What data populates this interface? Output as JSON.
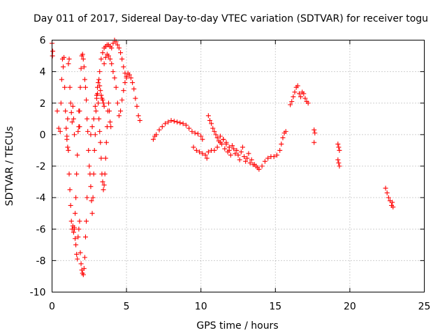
{
  "chart_data": {
    "type": "scatter",
    "title": "Day 011 of 2017, Sidereal Day-to-day VTEC variation (SDTVAR) for receiver togu",
    "xlabel": "GPS time / hours",
    "ylabel": "SDTVAR / TECUs",
    "xlim": [
      0,
      25
    ],
    "ylim": [
      -10,
      6
    ],
    "xticks": [
      0,
      5,
      10,
      15,
      20,
      25
    ],
    "yticks": [
      -10,
      -8,
      -6,
      -4,
      -2,
      0,
      2,
      4,
      6
    ],
    "xtick_labels": [
      "0",
      "5",
      "10",
      "15",
      "20",
      "25"
    ],
    "ytick_labels": [
      "-10",
      "-8",
      "-6",
      "-4",
      "-2",
      "0",
      "2",
      "4",
      "6"
    ],
    "grid": true,
    "marker": "+",
    "color": "#ff0000",
    "series": [
      {
        "name": "SDTVAR",
        "points": [
          [
            0.0,
            5.8
          ],
          [
            0.03,
            5.0
          ],
          [
            0.05,
            5.3
          ],
          [
            0.35,
            1.5
          ],
          [
            0.45,
            0.4
          ],
          [
            0.55,
            0.2
          ],
          [
            0.6,
            2.0
          ],
          [
            0.65,
            3.5
          ],
          [
            0.7,
            4.8
          ],
          [
            0.75,
            4.3
          ],
          [
            0.8,
            4.9
          ],
          [
            0.85,
            3.0
          ],
          [
            0.9,
            1.5
          ],
          [
            0.95,
            0.4
          ],
          [
            1.0,
            -0.3
          ],
          [
            1.05,
            1.0
          ],
          [
            1.1,
            4.5
          ],
          [
            1.15,
            4.8
          ],
          [
            1.2,
            3.0
          ],
          [
            1.25,
            2.0
          ],
          [
            1.3,
            1.4
          ],
          [
            1.35,
            0.8
          ],
          [
            1.4,
            1.8
          ],
          [
            1.45,
            1.0
          ],
          [
            1.5,
            0.0
          ],
          [
            1.0,
            -0.1
          ],
          [
            1.05,
            -0.8
          ],
          [
            1.1,
            -1.0
          ],
          [
            1.15,
            -2.5
          ],
          [
            1.2,
            -3.5
          ],
          [
            1.25,
            -4.5
          ],
          [
            1.3,
            -5.5
          ],
          [
            1.35,
            -6.0
          ],
          [
            1.4,
            -5.8
          ],
          [
            1.45,
            -6.2
          ],
          [
            1.5,
            -5.9
          ],
          [
            1.55,
            -5.0
          ],
          [
            1.6,
            -4.0
          ],
          [
            1.65,
            -2.5
          ],
          [
            1.7,
            -1.3
          ],
          [
            1.75,
            0.2
          ],
          [
            1.8,
            1.5
          ],
          [
            1.85,
            0.5
          ],
          [
            1.5,
            -6.0
          ],
          [
            1.55,
            -6.6
          ],
          [
            1.6,
            -7.0
          ],
          [
            1.65,
            -7.6
          ],
          [
            1.7,
            -7.9
          ],
          [
            1.75,
            -6.5
          ],
          [
            1.8,
            -6.0
          ],
          [
            1.85,
            -5.5
          ],
          [
            1.9,
            -7.5
          ],
          [
            1.95,
            -8.2
          ],
          [
            2.0,
            -8.6
          ],
          [
            2.05,
            -8.8
          ],
          [
            2.1,
            -8.9
          ],
          [
            2.15,
            -8.5
          ],
          [
            2.2,
            -7.8
          ],
          [
            2.25,
            -6.5
          ],
          [
            2.3,
            -5.5
          ],
          [
            2.35,
            -4.0
          ],
          [
            1.8,
            0.5
          ],
          [
            1.85,
            1.5
          ],
          [
            1.9,
            3.0
          ],
          [
            1.95,
            4.2
          ],
          [
            2.0,
            5.0
          ],
          [
            2.05,
            5.1
          ],
          [
            2.1,
            4.8
          ],
          [
            2.15,
            4.3
          ],
          [
            2.2,
            3.5
          ],
          [
            2.25,
            3.0
          ],
          [
            2.3,
            2.2
          ],
          [
            2.35,
            1.0
          ],
          [
            2.4,
            0.2
          ],
          [
            2.45,
            -1.0
          ],
          [
            2.5,
            -2.0
          ],
          [
            2.55,
            -2.5
          ],
          [
            2.6,
            -3.3
          ],
          [
            2.65,
            -4.2
          ],
          [
            2.7,
            -5.0
          ],
          [
            2.75,
            -4.0
          ],
          [
            2.8,
            -2.5
          ],
          [
            2.85,
            -1.0
          ],
          [
            2.9,
            0.0
          ],
          [
            2.95,
            1.5
          ],
          [
            3.0,
            2.3
          ],
          [
            3.05,
            2.6
          ],
          [
            3.1,
            2.0
          ],
          [
            3.15,
            1.0
          ],
          [
            3.2,
            0.2
          ],
          [
            3.25,
            -0.5
          ],
          [
            3.3,
            -1.5
          ],
          [
            3.35,
            -2.5
          ],
          [
            3.4,
            -3.0
          ],
          [
            3.45,
            -3.5
          ],
          [
            3.5,
            -3.2
          ],
          [
            3.55,
            -2.5
          ],
          [
            3.6,
            -1.5
          ],
          [
            3.65,
            -0.5
          ],
          [
            3.7,
            0.5
          ],
          [
            3.75,
            1.5
          ],
          [
            3.8,
            2.0
          ],
          [
            3.85,
            1.5
          ],
          [
            3.9,
            0.8
          ],
          [
            3.95,
            0.5
          ],
          [
            2.6,
            0.0
          ],
          [
            2.7,
            0.5
          ],
          [
            2.8,
            1.0
          ],
          [
            2.9,
            1.8
          ],
          [
            3.0,
            2.5
          ],
          [
            3.05,
            3.0
          ],
          [
            3.1,
            3.3
          ],
          [
            3.15,
            3.5
          ],
          [
            3.2,
            3.1
          ],
          [
            3.25,
            2.8
          ],
          [
            3.3,
            2.5
          ],
          [
            3.35,
            2.3
          ],
          [
            3.4,
            2.2
          ],
          [
            3.45,
            2.0
          ],
          [
            3.5,
            1.8
          ],
          [
            3.2,
            4.0
          ],
          [
            3.3,
            4.8
          ],
          [
            3.4,
            5.2
          ],
          [
            3.5,
            5.5
          ],
          [
            3.6,
            5.6
          ],
          [
            3.7,
            5.7
          ],
          [
            3.8,
            5.7
          ],
          [
            3.9,
            5.6
          ],
          [
            4.0,
            5.5
          ],
          [
            4.1,
            5.8
          ],
          [
            4.2,
            6.0
          ],
          [
            4.3,
            5.9
          ],
          [
            4.4,
            5.7
          ],
          [
            4.5,
            5.5
          ],
          [
            4.6,
            5.2
          ],
          [
            4.7,
            4.8
          ],
          [
            4.8,
            4.3
          ],
          [
            4.9,
            3.9
          ],
          [
            5.0,
            3.6
          ],
          [
            3.5,
            4.5
          ],
          [
            3.6,
            4.9
          ],
          [
            3.7,
            5.1
          ],
          [
            3.8,
            5.0
          ],
          [
            3.9,
            4.8
          ],
          [
            4.0,
            4.5
          ],
          [
            4.1,
            4.0
          ],
          [
            4.2,
            3.6
          ],
          [
            4.3,
            3.0
          ],
          [
            4.4,
            2.0
          ],
          [
            4.5,
            1.2
          ],
          [
            4.6,
            1.5
          ],
          [
            4.7,
            2.2
          ],
          [
            4.8,
            2.8
          ],
          [
            4.9,
            3.3
          ],
          [
            5.0,
            3.7
          ],
          [
            5.1,
            3.9
          ],
          [
            5.2,
            3.8
          ],
          [
            5.3,
            3.6
          ],
          [
            5.4,
            3.3
          ],
          [
            5.5,
            2.9
          ],
          [
            5.6,
            2.3
          ],
          [
            5.7,
            1.8
          ],
          [
            5.8,
            1.2
          ],
          [
            5.9,
            0.9
          ],
          [
            6.8,
            -0.3
          ],
          [
            6.9,
            -0.1
          ],
          [
            7.0,
            0.0
          ],
          [
            7.2,
            0.3
          ],
          [
            7.4,
            0.5
          ],
          [
            7.6,
            0.7
          ],
          [
            7.8,
            0.8
          ],
          [
            8.0,
            0.9
          ],
          [
            8.2,
            0.85
          ],
          [
            8.4,
            0.8
          ],
          [
            8.6,
            0.75
          ],
          [
            8.8,
            0.7
          ],
          [
            9.0,
            0.6
          ],
          [
            9.2,
            0.4
          ],
          [
            9.4,
            0.2
          ],
          [
            9.6,
            0.1
          ],
          [
            9.8,
            0.05
          ],
          [
            10.0,
            -0.1
          ],
          [
            10.1,
            -0.3
          ],
          [
            9.5,
            -0.8
          ],
          [
            9.7,
            -1.0
          ],
          [
            9.9,
            -1.1
          ],
          [
            10.1,
            -1.2
          ],
          [
            10.3,
            -1.3
          ],
          [
            10.4,
            -1.5
          ],
          [
            10.5,
            -1.1
          ],
          [
            10.7,
            -1.0
          ],
          [
            10.9,
            -1.0
          ],
          [
            11.1,
            -0.8
          ],
          [
            11.3,
            -0.5
          ],
          [
            11.5,
            -0.3
          ],
          [
            11.7,
            -0.6
          ],
          [
            11.9,
            -1.0
          ],
          [
            12.1,
            -0.7
          ],
          [
            12.3,
            -1.2
          ],
          [
            12.5,
            -1.3
          ],
          [
            12.7,
            -1.1
          ],
          [
            12.9,
            -1.4
          ],
          [
            13.1,
            -1.5
          ],
          [
            13.3,
            -1.8
          ],
          [
            13.5,
            -1.9
          ],
          [
            13.7,
            -2.0
          ],
          [
            13.9,
            -2.2
          ],
          [
            14.1,
            -2.0
          ],
          [
            14.3,
            -1.7
          ],
          [
            14.5,
            -1.5
          ],
          [
            14.7,
            -1.4
          ],
          [
            14.9,
            -1.4
          ],
          [
            15.1,
            -1.3
          ],
          [
            15.3,
            -1.0
          ],
          [
            15.4,
            -0.6
          ],
          [
            15.5,
            -0.2
          ],
          [
            15.6,
            0.1
          ],
          [
            15.7,
            0.2
          ],
          [
            10.5,
            1.2
          ],
          [
            10.6,
            0.9
          ],
          [
            10.7,
            0.7
          ],
          [
            10.8,
            0.4
          ],
          [
            10.9,
            0.2
          ],
          [
            11.0,
            0.0
          ],
          [
            11.1,
            -0.2
          ],
          [
            11.2,
            -0.4
          ],
          [
            11.3,
            -0.1
          ],
          [
            11.4,
            -0.6
          ],
          [
            11.5,
            -0.3
          ],
          [
            11.6,
            -0.9
          ],
          [
            11.7,
            -0.5
          ],
          [
            11.8,
            -1.1
          ],
          [
            11.9,
            -0.8
          ],
          [
            12.0,
            -1.3
          ],
          [
            12.2,
            -0.9
          ],
          [
            12.4,
            -1.0
          ],
          [
            12.6,
            -1.6
          ],
          [
            12.8,
            -0.8
          ],
          [
            13.0,
            -1.7
          ],
          [
            13.2,
            -1.2
          ],
          [
            13.4,
            -1.6
          ],
          [
            13.6,
            -1.9
          ],
          [
            13.8,
            -2.1
          ],
          [
            16.0,
            1.9
          ],
          [
            16.1,
            2.1
          ],
          [
            16.2,
            2.4
          ],
          [
            16.3,
            2.7
          ],
          [
            16.4,
            3.0
          ],
          [
            16.5,
            3.1
          ],
          [
            16.6,
            2.6
          ],
          [
            16.7,
            2.4
          ],
          [
            16.8,
            2.7
          ],
          [
            16.9,
            2.6
          ],
          [
            17.0,
            2.3
          ],
          [
            17.1,
            2.1
          ],
          [
            17.2,
            2.0
          ],
          [
            17.6,
            0.3
          ],
          [
            17.65,
            0.1
          ],
          [
            17.6,
            -0.5
          ],
          [
            19.2,
            -0.6
          ],
          [
            19.25,
            -0.8
          ],
          [
            19.3,
            -1.0
          ],
          [
            19.2,
            -1.6
          ],
          [
            19.25,
            -1.8
          ],
          [
            19.3,
            -2.0
          ],
          [
            22.4,
            -3.4
          ],
          [
            22.5,
            -3.7
          ],
          [
            22.6,
            -4.0
          ],
          [
            22.7,
            -4.2
          ],
          [
            22.8,
            -4.5
          ],
          [
            22.9,
            -4.6
          ],
          [
            22.85,
            -4.3
          ]
        ]
      }
    ]
  }
}
